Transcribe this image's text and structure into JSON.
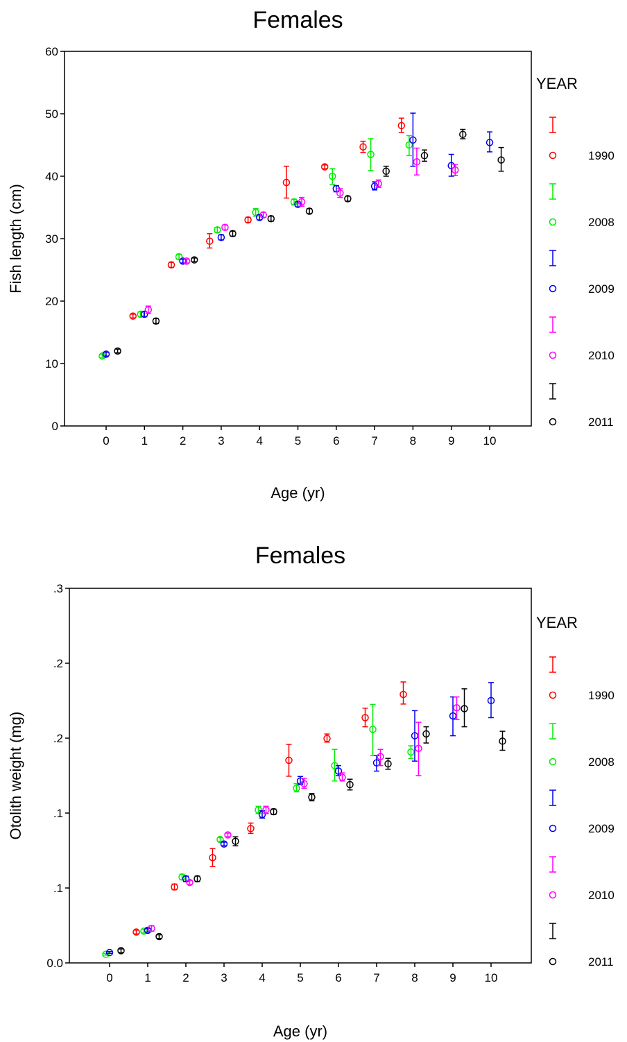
{
  "chart_data": [
    {
      "type": "scatter",
      "title": "Females",
      "xlabel": "Age (yr)",
      "ylabel": "Fish length (cm)",
      "x_ticks": [
        "0",
        "1",
        "2",
        "3",
        "4",
        "5",
        "6",
        "7",
        "8",
        "9",
        "10"
      ],
      "y_ticks": [
        "0",
        "10",
        "20",
        "30",
        "40",
        "50",
        "60"
      ],
      "ylim": [
        0,
        60
      ],
      "legend_title": "YEAR",
      "legend_position": "right",
      "series": [
        {
          "name": "1990",
          "color": "#ff0000",
          "points": [
            {
              "age": 1,
              "mean": 17.6,
              "low": 17.3,
              "high": 17.9
            },
            {
              "age": 2,
              "mean": 25.8,
              "low": 25.4,
              "high": 26.2
            },
            {
              "age": 3,
              "mean": 29.6,
              "low": 28.5,
              "high": 30.8
            },
            {
              "age": 4,
              "mean": 33.0,
              "low": 32.6,
              "high": 33.4
            },
            {
              "age": 5,
              "mean": 39.0,
              "low": 36.5,
              "high": 41.6
            },
            {
              "age": 6,
              "mean": 41.5,
              "low": 41.2,
              "high": 41.8
            },
            {
              "age": 7,
              "mean": 44.7,
              "low": 43.8,
              "high": 45.6
            },
            {
              "age": 8,
              "mean": 48.1,
              "low": 47.0,
              "high": 49.3
            }
          ]
        },
        {
          "name": "2008",
          "color": "#00ee00",
          "points": [
            {
              "age": 0,
              "mean": 11.2,
              "low": 10.9,
              "high": 11.5
            },
            {
              "age": 1,
              "mean": 17.9,
              "low": 17.5,
              "high": 18.3
            },
            {
              "age": 2,
              "mean": 27.1,
              "low": 26.7,
              "high": 27.5
            },
            {
              "age": 3,
              "mean": 31.4,
              "low": 31.0,
              "high": 31.8
            },
            {
              "age": 4,
              "mean": 34.2,
              "low": 33.6,
              "high": 34.8
            },
            {
              "age": 5,
              "mean": 35.9,
              "low": 35.4,
              "high": 36.3
            },
            {
              "age": 6,
              "mean": 40.0,
              "low": 38.7,
              "high": 41.2
            },
            {
              "age": 7,
              "mean": 43.5,
              "low": 40.9,
              "high": 46.0
            },
            {
              "age": 8,
              "mean": 45.0,
              "low": 43.3,
              "high": 46.5
            }
          ]
        },
        {
          "name": "2009",
          "color": "#0000ee",
          "points": [
            {
              "age": 0,
              "mean": 11.5,
              "low": 11.2,
              "high": 11.8
            },
            {
              "age": 1,
              "mean": 17.9,
              "low": 17.5,
              "high": 18.3
            },
            {
              "age": 2,
              "mean": 26.4,
              "low": 26.1,
              "high": 26.7
            },
            {
              "age": 3,
              "mean": 30.2,
              "low": 29.8,
              "high": 30.6
            },
            {
              "age": 4,
              "mean": 33.4,
              "low": 33.0,
              "high": 33.8
            },
            {
              "age": 5,
              "mean": 35.5,
              "low": 35.1,
              "high": 35.9
            },
            {
              "age": 6,
              "mean": 38.0,
              "low": 37.5,
              "high": 38.5
            },
            {
              "age": 7,
              "mean": 38.4,
              "low": 37.8,
              "high": 39.1
            },
            {
              "age": 8,
              "mean": 45.8,
              "low": 41.6,
              "high": 50.1
            },
            {
              "age": 9,
              "mean": 41.7,
              "low": 40.0,
              "high": 43.5
            },
            {
              "age": 10,
              "mean": 45.4,
              "low": 43.9,
              "high": 47.1
            }
          ]
        },
        {
          "name": "2010",
          "color": "#ff00ff",
          "points": [
            {
              "age": 1,
              "mean": 18.6,
              "low": 18.0,
              "high": 19.2
            },
            {
              "age": 2,
              "mean": 26.4,
              "low": 26.1,
              "high": 26.7
            },
            {
              "age": 3,
              "mean": 31.8,
              "low": 31.4,
              "high": 32.2
            },
            {
              "age": 4,
              "mean": 33.8,
              "low": 33.4,
              "high": 34.2
            },
            {
              "age": 5,
              "mean": 35.9,
              "low": 35.2,
              "high": 36.6
            },
            {
              "age": 6,
              "mean": 37.3,
              "low": 36.6,
              "high": 38.0
            },
            {
              "age": 7,
              "mean": 38.8,
              "low": 38.2,
              "high": 39.4
            },
            {
              "age": 8,
              "mean": 42.3,
              "low": 40.2,
              "high": 44.5
            },
            {
              "age": 9,
              "mean": 41.0,
              "low": 40.1,
              "high": 41.9
            }
          ]
        },
        {
          "name": "2011",
          "color": "#000000",
          "points": [
            {
              "age": 0,
              "mean": 12.0,
              "low": 11.7,
              "high": 12.3
            },
            {
              "age": 1,
              "mean": 16.8,
              "low": 16.4,
              "high": 17.2
            },
            {
              "age": 2,
              "mean": 26.6,
              "low": 26.3,
              "high": 26.9
            },
            {
              "age": 3,
              "mean": 30.8,
              "low": 30.4,
              "high": 31.2
            },
            {
              "age": 4,
              "mean": 33.2,
              "low": 32.8,
              "high": 33.6
            },
            {
              "age": 5,
              "mean": 34.4,
              "low": 34.0,
              "high": 34.8
            },
            {
              "age": 6,
              "mean": 36.4,
              "low": 36.0,
              "high": 36.8
            },
            {
              "age": 7,
              "mean": 40.8,
              "low": 40.0,
              "high": 41.6
            },
            {
              "age": 8,
              "mean": 43.3,
              "low": 42.4,
              "high": 44.2
            },
            {
              "age": 9,
              "mean": 46.7,
              "low": 46.0,
              "high": 47.5
            },
            {
              "age": 10,
              "mean": 42.6,
              "low": 40.8,
              "high": 44.6
            }
          ]
        }
      ]
    },
    {
      "type": "scatter",
      "title": "Females",
      "xlabel": "Age (yr)",
      "ylabel": "Otolith weight (mg)",
      "x_ticks": [
        "0",
        "1",
        "2",
        "3",
        "4",
        "5",
        "6",
        "7",
        "8",
        "9",
        "10"
      ],
      "y_ticks": [
        "0.0",
        ".1",
        ".1",
        ".2",
        ".2",
        ".3"
      ],
      "ylim": [
        0,
        0.3
      ],
      "legend_title": "YEAR",
      "legend_position": "right",
      "series": [
        {
          "name": "1990",
          "color": "#ff0000",
          "points": [
            {
              "age": 1,
              "mean": 0.0247,
              "low": 0.0232,
              "high": 0.0262
            },
            {
              "age": 2,
              "mean": 0.0608,
              "low": 0.0586,
              "high": 0.0631
            },
            {
              "age": 3,
              "mean": 0.0843,
              "low": 0.0771,
              "high": 0.0916
            },
            {
              "age": 4,
              "mean": 0.1076,
              "low": 0.1037,
              "high": 0.112
            },
            {
              "age": 5,
              "mean": 0.1623,
              "low": 0.1495,
              "high": 0.175
            },
            {
              "age": 6,
              "mean": 0.1797,
              "low": 0.1768,
              "high": 0.1833
            },
            {
              "age": 7,
              "mean": 0.1964,
              "low": 0.1891,
              "high": 0.204
            },
            {
              "age": 8,
              "mean": 0.215,
              "low": 0.2073,
              "high": 0.225
            }
          ]
        },
        {
          "name": "2008",
          "color": "#00ee00",
          "points": [
            {
              "age": 0,
              "mean": 0.0069,
              "low": 0.0062,
              "high": 0.0076
            },
            {
              "age": 1,
              "mean": 0.0254,
              "low": 0.0239,
              "high": 0.0269
            },
            {
              "age": 2,
              "mean": 0.0688,
              "low": 0.0666,
              "high": 0.071
            },
            {
              "age": 3,
              "mean": 0.0988,
              "low": 0.0974,
              "high": 0.1003
            },
            {
              "age": 4,
              "mean": 0.1225,
              "low": 0.1196,
              "high": 0.1254
            },
            {
              "age": 5,
              "mean": 0.1399,
              "low": 0.137,
              "high": 0.1435
            },
            {
              "age": 6,
              "mean": 0.158,
              "low": 0.1457,
              "high": 0.171
            },
            {
              "age": 7,
              "mean": 0.187,
              "low": 0.166,
              "high": 0.207
            },
            {
              "age": 8,
              "mean": 0.1689,
              "low": 0.1638,
              "high": 0.1739
            }
          ]
        },
        {
          "name": "2009",
          "color": "#0000ee",
          "points": [
            {
              "age": 0,
              "mean": 0.0083,
              "low": 0.0076,
              "high": 0.0091
            },
            {
              "age": 1,
              "mean": 0.0261,
              "low": 0.0247,
              "high": 0.0276
            },
            {
              "age": 2,
              "mean": 0.0674,
              "low": 0.0652,
              "high": 0.0695
            },
            {
              "age": 3,
              "mean": 0.0952,
              "low": 0.0938,
              "high": 0.0967
            },
            {
              "age": 4,
              "mean": 0.1189,
              "low": 0.116,
              "high": 0.1218
            },
            {
              "age": 5,
              "mean": 0.1457,
              "low": 0.1428,
              "high": 0.1493
            },
            {
              "age": 6,
              "mean": 0.1536,
              "low": 0.15,
              "high": 0.158
            },
            {
              "age": 7,
              "mean": 0.1602,
              "low": 0.1536,
              "high": 0.166
            },
            {
              "age": 8,
              "mean": 0.1819,
              "low": 0.1616,
              "high": 0.202
            },
            {
              "age": 9,
              "mean": 0.1978,
              "low": 0.1819,
              "high": 0.213
            },
            {
              "age": 10,
              "mean": 0.2101,
              "low": 0.1964,
              "high": 0.2245
            }
          ]
        },
        {
          "name": "2010",
          "color": "#ff00ff",
          "points": [
            {
              "age": 1,
              "mean": 0.0276,
              "low": 0.0254,
              "high": 0.0297
            },
            {
              "age": 2,
              "mean": 0.0644,
              "low": 0.063,
              "high": 0.0659
            },
            {
              "age": 3,
              "mean": 0.1025,
              "low": 0.101,
              "high": 0.1039
            },
            {
              "age": 4,
              "mean": 0.1225,
              "low": 0.1196,
              "high": 0.1254
            },
            {
              "age": 5,
              "mean": 0.1435,
              "low": 0.1399,
              "high": 0.1478
            },
            {
              "age": 6,
              "mean": 0.1486,
              "low": 0.1457,
              "high": 0.1522
            },
            {
              "age": 7,
              "mean": 0.1652,
              "low": 0.158,
              "high": 0.171
            },
            {
              "age": 8,
              "mean": 0.1718,
              "low": 0.15,
              "high": 0.1927
            },
            {
              "age": 9,
              "mean": 0.2043,
              "low": 0.1949,
              "high": 0.213
            }
          ]
        },
        {
          "name": "2011",
          "color": "#000000",
          "points": [
            {
              "age": 0,
              "mean": 0.0098,
              "low": 0.0083,
              "high": 0.0112
            },
            {
              "age": 1,
              "mean": 0.0211,
              "low": 0.0196,
              "high": 0.0225
            },
            {
              "age": 2,
              "mean": 0.0674,
              "low": 0.0652,
              "high": 0.0695
            },
            {
              "age": 3,
              "mean": 0.0974,
              "low": 0.0938,
              "high": 0.101
            },
            {
              "age": 4,
              "mean": 0.1211,
              "low": 0.1189,
              "high": 0.1232
            },
            {
              "age": 5,
              "mean": 0.1327,
              "low": 0.1298,
              "high": 0.1356
            },
            {
              "age": 6,
              "mean": 0.1428,
              "low": 0.1385,
              "high": 0.1471
            },
            {
              "age": 7,
              "mean": 0.1594,
              "low": 0.1551,
              "high": 0.1638
            },
            {
              "age": 8,
              "mean": 0.1834,
              "low": 0.1761,
              "high": 0.1891
            },
            {
              "age": 9,
              "mean": 0.2036,
              "low": 0.1891,
              "high": 0.2195
            },
            {
              "age": 10,
              "mean": 0.1776,
              "low": 0.1703,
              "high": 0.1855
            }
          ]
        }
      ]
    }
  ]
}
